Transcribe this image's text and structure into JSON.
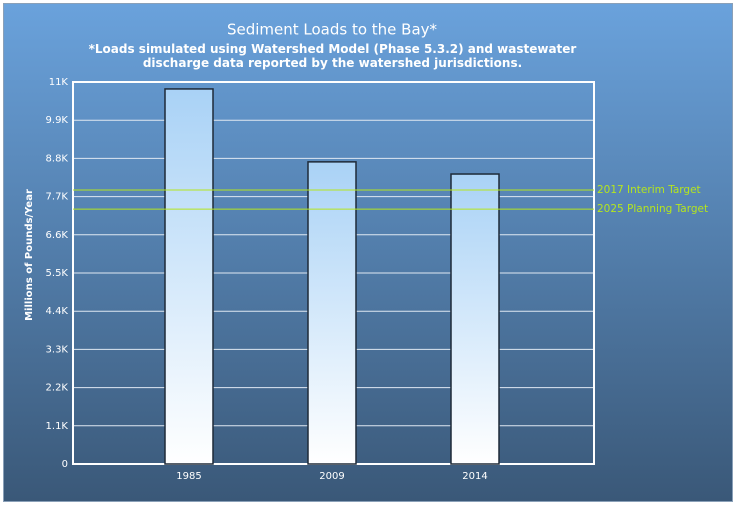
{
  "chart_data": {
    "type": "bar",
    "title": "Sediment Loads to the Bay*",
    "subtitle": "*Loads simulated using Watershed Model (Phase 5.3.2) and wastewater discharge data reported by the watershed jurisdictions.",
    "y_label": "Millions of Pounds/Year",
    "categories": [
      "1985",
      "2009",
      "2014"
    ],
    "values": [
      10800,
      8700,
      8350
    ],
    "ylim": [
      0,
      11000
    ],
    "yticks": [
      {
        "value": 0,
        "label": "0"
      },
      {
        "value": 1100,
        "label": "1.1K"
      },
      {
        "value": 2200,
        "label": "2.2K"
      },
      {
        "value": 3300,
        "label": "3.3K"
      },
      {
        "value": 4400,
        "label": "4.4K"
      },
      {
        "value": 5500,
        "label": "5.5K"
      },
      {
        "value": 6600,
        "label": "6.6K"
      },
      {
        "value": 7700,
        "label": "7.7K"
      },
      {
        "value": 8800,
        "label": "8.8K"
      },
      {
        "value": 9900,
        "label": "9.9K"
      },
      {
        "value": 11000,
        "label": "11K"
      }
    ],
    "grid": true,
    "reference_lines": [
      {
        "label": "2017 Interim Target",
        "value": 7890,
        "color": "#b5e61d"
      },
      {
        "label": "2025 Planning Target",
        "value": 7340,
        "color": "#b5e61d"
      }
    ]
  }
}
